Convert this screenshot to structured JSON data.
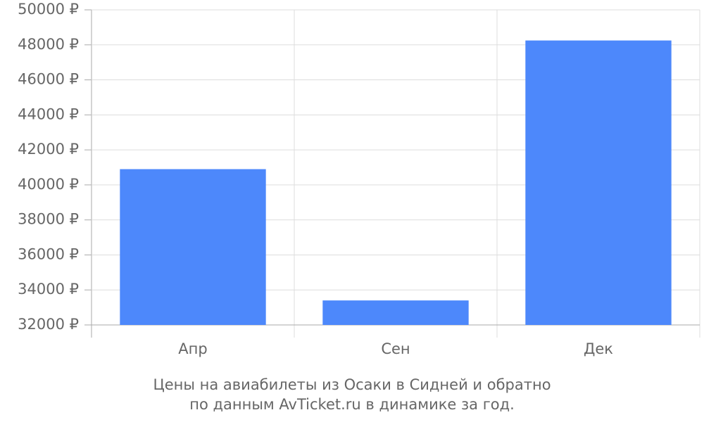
{
  "chart_data": {
    "type": "bar",
    "caption": [
      "Цены на авиабилеты из Осаки в Сидней и обратно",
      "по данным AvTicket.ru в динамике за год."
    ],
    "categories": [
      "Апр",
      "Сен",
      "Дек"
    ],
    "values": [
      40900,
      33400,
      48250
    ],
    "color": "#4d88fb",
    "ylim": [
      32000,
      50000
    ],
    "yticks": [
      {
        "value": 32000,
        "label": "32000 ₽"
      },
      {
        "value": 34000,
        "label": "34000 ₽"
      },
      {
        "value": 36000,
        "label": "36000 ₽"
      },
      {
        "value": 38000,
        "label": "38000 ₽"
      },
      {
        "value": 40000,
        "label": "40000 ₽"
      },
      {
        "value": 42000,
        "label": "42000 ₽"
      },
      {
        "value": 44000,
        "label": "44000 ₽"
      },
      {
        "value": 46000,
        "label": "46000 ₽"
      },
      {
        "value": 48000,
        "label": "48000 ₽"
      },
      {
        "value": 50000,
        "label": "50000 ₽"
      }
    ],
    "grid": true
  }
}
